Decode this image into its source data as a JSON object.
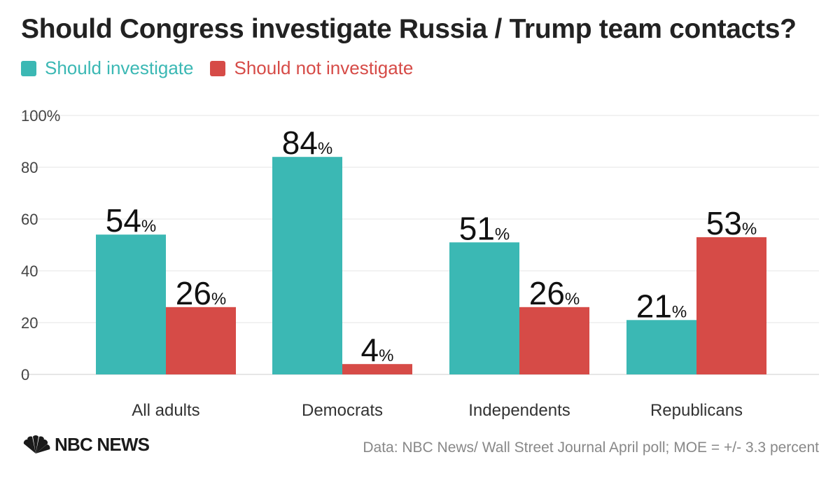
{
  "colors": {
    "should": "#3bb8b4",
    "should_not": "#d64b47",
    "grid": "#e6e6e6",
    "axis_text": "#444444",
    "title": "#222222"
  },
  "chart_data": {
    "type": "bar",
    "title": "Should Congress investigate Russia / Trump team contacts?",
    "categories": [
      "All adults",
      "Democrats",
      "Independents",
      "Republicans"
    ],
    "series": [
      {
        "name": "Should investigate",
        "values": [
          54,
          84,
          51,
          21
        ],
        "color": "#3bb8b4"
      },
      {
        "name": "Should not investigate",
        "values": [
          26,
          4,
          26,
          53
        ],
        "color": "#d64b47"
      }
    ],
    "ylim": [
      0,
      100
    ],
    "yticks": [
      0,
      20,
      40,
      60,
      80,
      100
    ],
    "ytick_labels": [
      "0",
      "20",
      "40",
      "60",
      "80",
      "100%"
    ],
    "value_suffix": "%",
    "xlabel": "",
    "ylabel": "",
    "legend_position": "top-left",
    "grid": true
  },
  "footer": {
    "brand": "NBC NEWS",
    "logo_icon": "nbc-peacock-icon",
    "source": "Data: NBC News/ Wall Street Journal April poll; MOE = +/- 3.3 percent"
  }
}
